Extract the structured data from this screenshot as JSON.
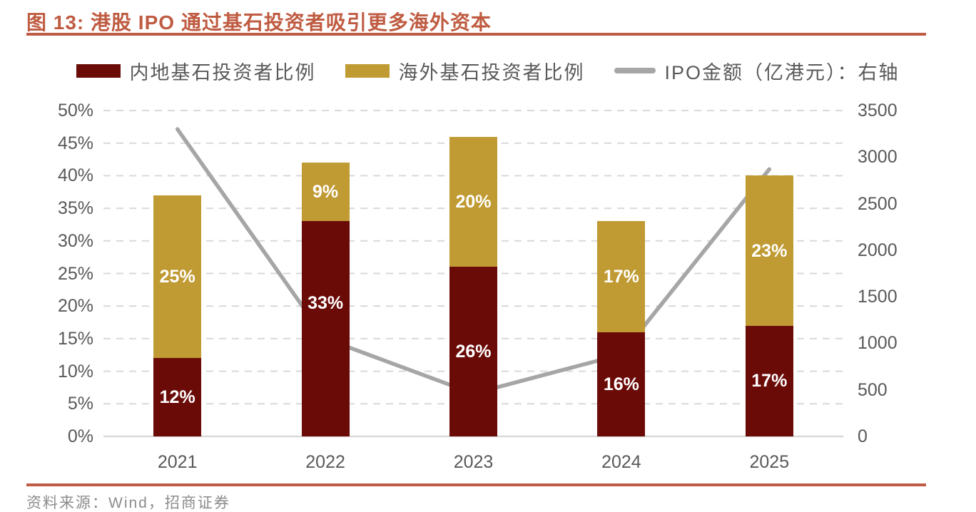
{
  "header": {
    "title": "图 13: 港股 IPO 通过基石投资者吸引更多海外资本"
  },
  "footer": {
    "source": "资料来源：Wind，招商证券"
  },
  "legend": {
    "items": [
      {
        "label": "内地基石投资者比例",
        "swatch": "bar",
        "color": "#6A0B08"
      },
      {
        "label": "海外基石投资者比例",
        "swatch": "bar",
        "color": "#C09A32"
      },
      {
        "label": "IPO金额（亿港元）：右轴",
        "swatch": "line",
        "color": "#A6A6A6"
      }
    ]
  },
  "chart_data": {
    "type": "bar",
    "subtype": "stacked-bars-with-secondary-axis-line",
    "title": "港股 IPO 通过基石投资者吸引更多海外资本",
    "categories": [
      "2021",
      "2022",
      "2023",
      "2024",
      "2025"
    ],
    "series": [
      {
        "name": "内地基石投资者比例",
        "type": "bar",
        "axis": "left",
        "color": "#6A0B08",
        "values": [
          12,
          33,
          26,
          16,
          17
        ],
        "labels": [
          "12%",
          "33%",
          "26%",
          "16%",
          "17%"
        ]
      },
      {
        "name": "海外基石投资者比例",
        "type": "bar",
        "axis": "left",
        "color": "#C09A32",
        "values": [
          25,
          9,
          20,
          17,
          23
        ],
        "labels": [
          "25%",
          "9%",
          "20%",
          "17%",
          "23%"
        ]
      },
      {
        "name": "IPO金额（亿港元）：右轴",
        "type": "line",
        "axis": "right",
        "color": "#A6A6A6",
        "values": [
          3300,
          1050,
          460,
          880,
          2870
        ]
      }
    ],
    "left_axis": {
      "min": 0,
      "max": 50,
      "tick_step": 5,
      "ticks": [
        "50%",
        "45%",
        "40%",
        "35%",
        "30%",
        "25%",
        "20%",
        "15%",
        "10%",
        "5%",
        "0%"
      ]
    },
    "right_axis": {
      "min": 0,
      "max": 3500,
      "tick_step": 500,
      "ticks": [
        "3500",
        "3000",
        "2500",
        "2000",
        "1500",
        "1000",
        "500",
        "0"
      ]
    },
    "grid": {
      "horizontal": "dashed",
      "color": "#D9D9D9"
    },
    "legend_position": "top-center",
    "label_dy_overrides": [
      [
        0,
        -36,
        0,
        0,
        0
      ],
      [
        0,
        0,
        0,
        0,
        0
      ]
    ]
  },
  "colors": {
    "accent_rule": "#BD5B44",
    "title_text": "#BF5B41",
    "axis_text": "#595959",
    "grid_line": "#D9D9D9",
    "bar_label_text": "#FFFFFF",
    "source_text": "#8C8C8C",
    "background": "#FFFFFF"
  }
}
